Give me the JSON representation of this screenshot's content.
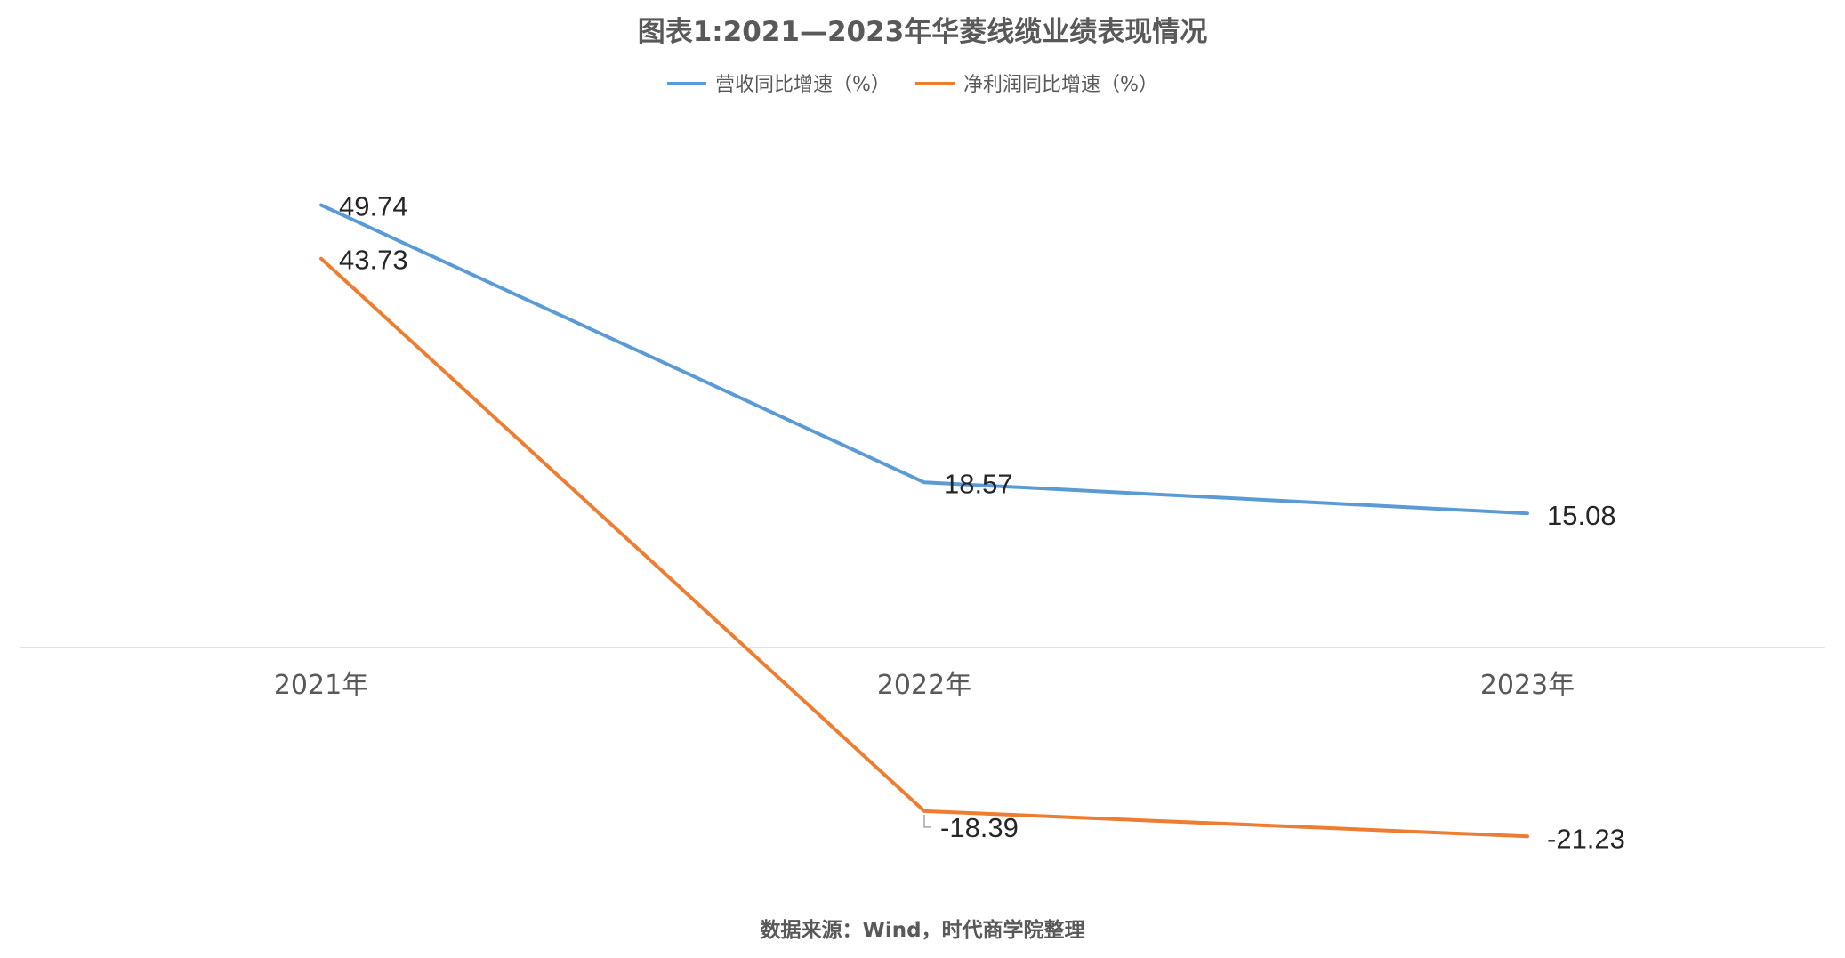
{
  "chart_data": {
    "type": "line",
    "title": "图表1:2021—2023年华菱线缆业绩表现情况",
    "categories": [
      "2021年",
      "2022年",
      "2023年"
    ],
    "series": [
      {
        "name": "营收同比增速（%）",
        "values": [
          49.74,
          18.57,
          15.08
        ],
        "color": "#5B9BD5",
        "labels": [
          "49.74",
          "18.57",
          "15.08"
        ]
      },
      {
        "name": "净利润同比增速（%）",
        "values": [
          43.73,
          -18.39,
          -21.23
        ],
        "color": "#ED7D31",
        "labels": [
          "43.73",
          "-18.39",
          "-21.23"
        ]
      }
    ],
    "legend_position": "top",
    "grid": false,
    "source": "数据来源：Wind，时代商学院整理"
  }
}
